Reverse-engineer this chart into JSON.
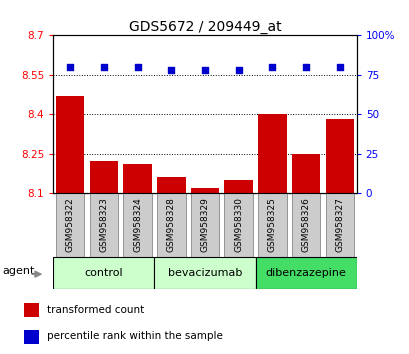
{
  "title": "GDS5672 / 209449_at",
  "samples": [
    "GSM958322",
    "GSM958323",
    "GSM958324",
    "GSM958328",
    "GSM958329",
    "GSM958330",
    "GSM958325",
    "GSM958326",
    "GSM958327"
  ],
  "bar_values": [
    8.47,
    8.22,
    8.21,
    8.16,
    8.12,
    8.15,
    8.4,
    8.25,
    8.38
  ],
  "scatter_values": [
    80,
    80,
    80,
    78,
    78,
    78,
    80,
    80,
    80
  ],
  "bar_color": "#cc0000",
  "scatter_color": "#0000cc",
  "ylim_left": [
    8.1,
    8.7
  ],
  "ylim_right": [
    0,
    100
  ],
  "yticks_left": [
    8.1,
    8.25,
    8.4,
    8.55,
    8.7
  ],
  "yticks_right": [
    0,
    25,
    50,
    75,
    100
  ],
  "ytick_labels_left": [
    "8.1",
    "8.25",
    "8.4",
    "8.55",
    "8.7"
  ],
  "ytick_labels_right": [
    "0",
    "25",
    "50",
    "75",
    "100%"
  ],
  "hlines": [
    8.25,
    8.4,
    8.55
  ],
  "groups": [
    {
      "label": "control",
      "start": 0,
      "end": 3,
      "color": "#ccffcc"
    },
    {
      "label": "bevacizumab",
      "start": 3,
      "end": 6,
      "color": "#ccffcc"
    },
    {
      "label": "dibenzazepine",
      "start": 6,
      "end": 9,
      "color": "#44dd66"
    }
  ],
  "agent_label": "agent",
  "legend_items": [
    {
      "color": "#cc0000",
      "label": "transformed count"
    },
    {
      "color": "#0000cc",
      "label": "percentile rank within the sample"
    }
  ],
  "bar_bottom": 8.1,
  "sample_box_color": "#cccccc",
  "sample_box_edge": "#888888"
}
